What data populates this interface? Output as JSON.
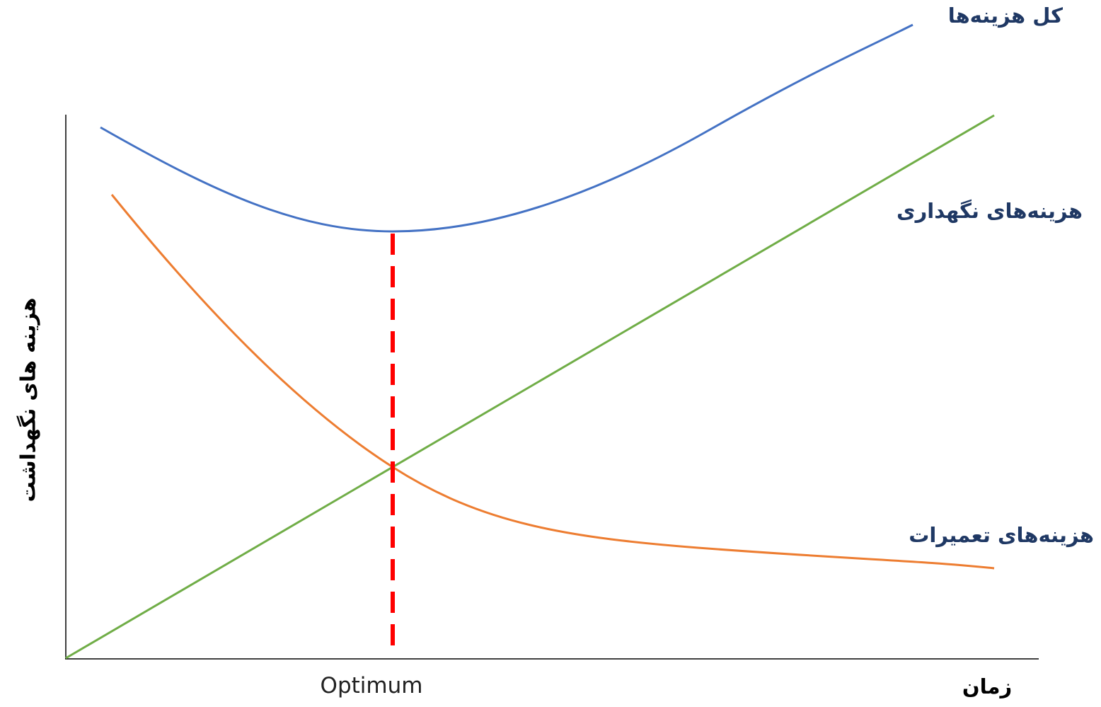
{
  "labels": {
    "total_cost": "کل هزینه‌ها",
    "maintenance_cost": "هزینه‌های نگهداری",
    "repair_cost": "هزینه‌های تعمیرات",
    "y_axis": "هزینه های نگهداشت",
    "x_axis": "زمان",
    "optimum": "Optimum"
  }
}
